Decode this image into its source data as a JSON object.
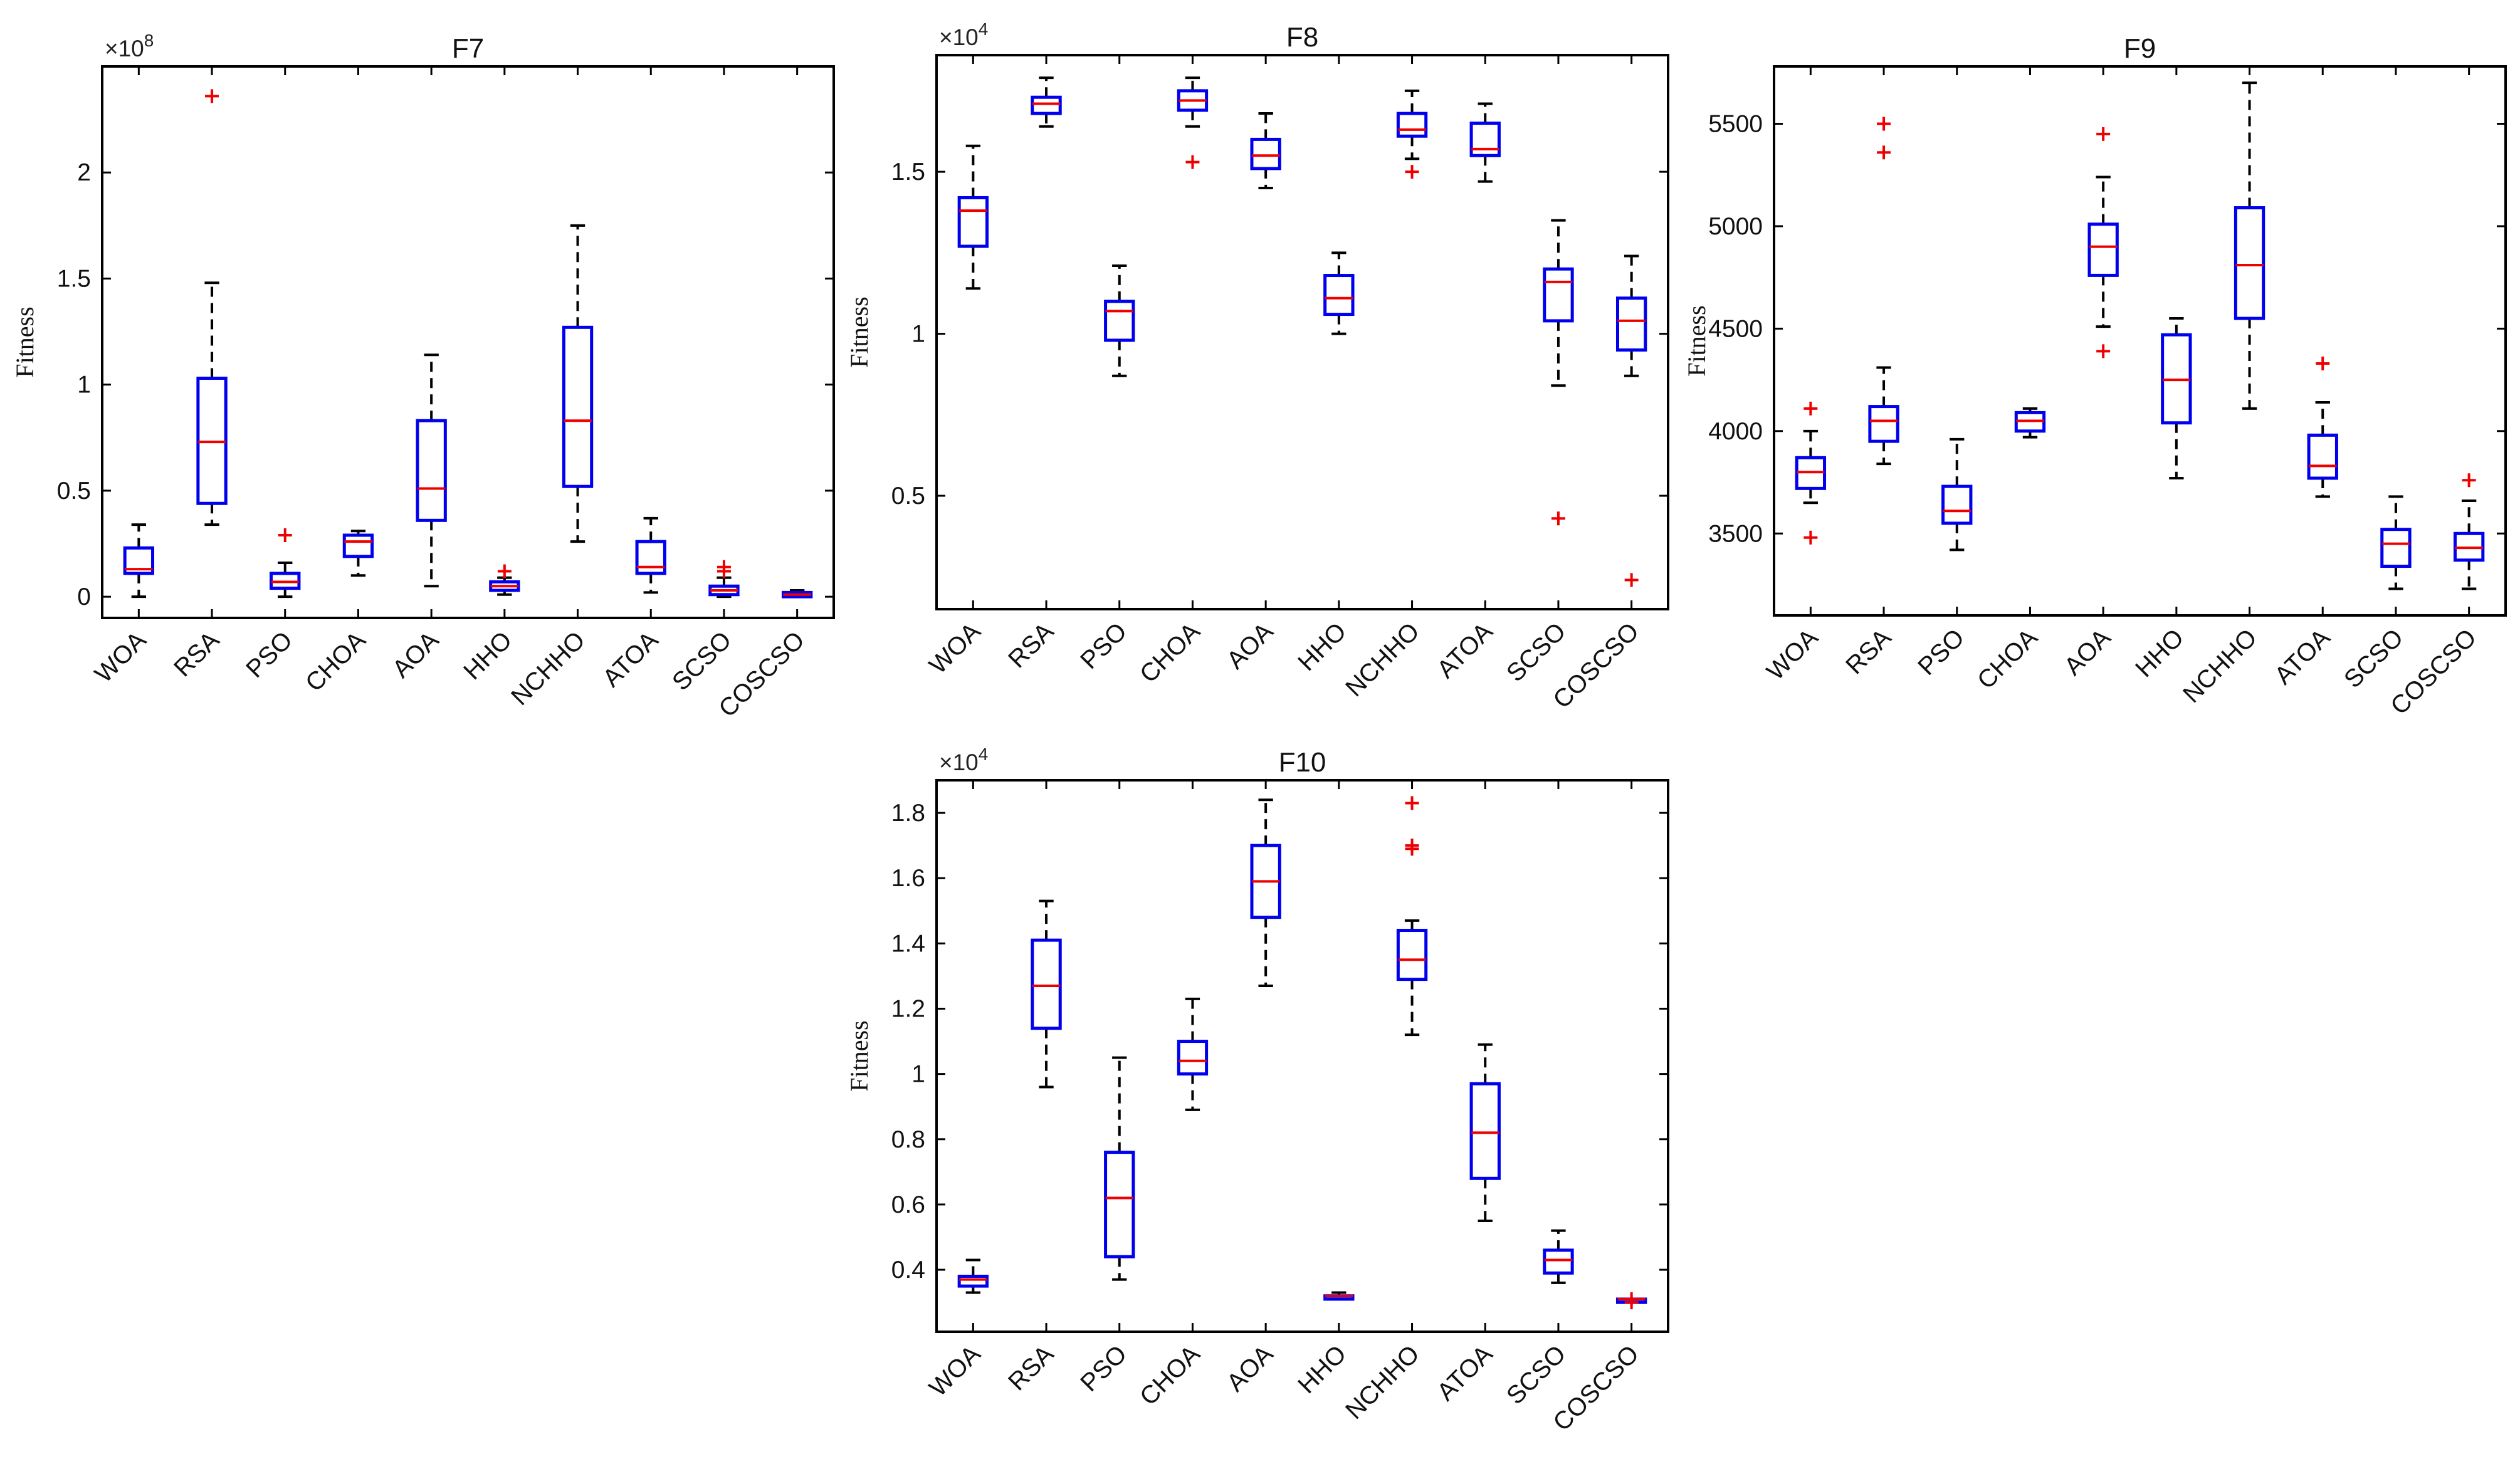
{
  "colors": {
    "box": "#0000ee",
    "median": "#ee0000",
    "outlier": "#ee0000",
    "whisker": "#000000",
    "axis": "#000000"
  },
  "chart_data": [
    {
      "type": "box",
      "title": "F7",
      "ylabel": "Fitness",
      "multiplier_base": "×10",
      "multiplier_exp": "8",
      "ylim": [
        -0.1,
        2.5
      ],
      "yticks": [
        0,
        0.5,
        1,
        1.5,
        2
      ],
      "ytick_labels": [
        "0",
        "0.5",
        "1",
        "1.5",
        "2"
      ],
      "categories": [
        "WOA",
        "RSA",
        "PSO",
        "CHOA",
        "AOA",
        "HHO",
        "NCHHO",
        "ATOA",
        "SCSO",
        "COSCSO"
      ],
      "boxes": [
        {
          "min": 0.0,
          "q1": 0.11,
          "median": 0.13,
          "q3": 0.23,
          "max": 0.34,
          "outliers": []
        },
        {
          "min": 0.34,
          "q1": 0.44,
          "median": 0.73,
          "q3": 1.03,
          "max": 1.48,
          "outliers": [
            2.36
          ]
        },
        {
          "min": 0.0,
          "q1": 0.04,
          "median": 0.07,
          "q3": 0.11,
          "max": 0.16,
          "outliers": [
            0.29
          ]
        },
        {
          "min": 0.1,
          "q1": 0.19,
          "median": 0.26,
          "q3": 0.29,
          "max": 0.31,
          "outliers": []
        },
        {
          "min": 0.05,
          "q1": 0.36,
          "median": 0.51,
          "q3": 0.83,
          "max": 1.14,
          "outliers": []
        },
        {
          "min": 0.01,
          "q1": 0.03,
          "median": 0.05,
          "q3": 0.07,
          "max": 0.09,
          "outliers": [
            0.12
          ]
        },
        {
          "min": 0.26,
          "q1": 0.52,
          "median": 0.83,
          "q3": 1.27,
          "max": 1.75,
          "outliers": []
        },
        {
          "min": 0.02,
          "q1": 0.11,
          "median": 0.14,
          "q3": 0.26,
          "max": 0.37,
          "outliers": []
        },
        {
          "min": 0.0,
          "q1": 0.01,
          "median": 0.03,
          "q3": 0.05,
          "max": 0.09,
          "outliers": [
            0.12,
            0.14
          ]
        },
        {
          "min": 0.0,
          "q1": 0.0,
          "median": 0.01,
          "q3": 0.02,
          "max": 0.03,
          "outliers": []
        }
      ]
    },
    {
      "type": "box",
      "title": "F8",
      "ylabel": "Fitness",
      "multiplier_base": "×10",
      "multiplier_exp": "4",
      "ylim": [
        0.15,
        1.86
      ],
      "yticks": [
        0.5,
        1,
        1.5
      ],
      "ytick_labels": [
        "0.5",
        "1",
        "1.5"
      ],
      "categories": [
        "WOA",
        "RSA",
        "PSO",
        "CHOA",
        "AOA",
        "HHO",
        "NCHHO",
        "ATOA",
        "SCSO",
        "COSCSO"
      ],
      "boxes": [
        {
          "min": 1.14,
          "q1": 1.27,
          "median": 1.38,
          "q3": 1.42,
          "max": 1.58,
          "outliers": []
        },
        {
          "min": 1.64,
          "q1": 1.68,
          "median": 1.71,
          "q3": 1.73,
          "max": 1.79,
          "outliers": []
        },
        {
          "min": 0.87,
          "q1": 0.98,
          "median": 1.07,
          "q3": 1.1,
          "max": 1.21,
          "outliers": []
        },
        {
          "min": 1.64,
          "q1": 1.69,
          "median": 1.72,
          "q3": 1.75,
          "max": 1.79,
          "outliers": [
            1.53
          ]
        },
        {
          "min": 1.45,
          "q1": 1.51,
          "median": 1.55,
          "q3": 1.6,
          "max": 1.68,
          "outliers": []
        },
        {
          "min": 1.0,
          "q1": 1.06,
          "median": 1.11,
          "q3": 1.18,
          "max": 1.25,
          "outliers": []
        },
        {
          "min": 1.54,
          "q1": 1.61,
          "median": 1.63,
          "q3": 1.68,
          "max": 1.75,
          "outliers": [
            1.5
          ]
        },
        {
          "min": 1.47,
          "q1": 1.55,
          "median": 1.57,
          "q3": 1.65,
          "max": 1.71,
          "outliers": []
        },
        {
          "min": 0.84,
          "q1": 1.04,
          "median": 1.16,
          "q3": 1.2,
          "max": 1.35,
          "outliers": [
            0.43
          ]
        },
        {
          "min": 0.87,
          "q1": 0.95,
          "median": 1.04,
          "q3": 1.11,
          "max": 1.24,
          "outliers": [
            0.24
          ]
        }
      ]
    },
    {
      "type": "box",
      "title": "F9",
      "ylabel": "Fitness",
      "ylim": [
        3100,
        5780
      ],
      "yticks": [
        3500,
        4000,
        4500,
        5000,
        5500
      ],
      "ytick_labels": [
        "3500",
        "4000",
        "4500",
        "5000",
        "5500"
      ],
      "categories": [
        "WOA",
        "RSA",
        "PSO",
        "CHOA",
        "AOA",
        "HHO",
        "NCHHO",
        "ATOA",
        "SCSO",
        "COSCSO"
      ],
      "boxes": [
        {
          "min": 3650,
          "q1": 3720,
          "median": 3800,
          "q3": 3870,
          "max": 4000,
          "outliers": [
            4110,
            3480
          ]
        },
        {
          "min": 3840,
          "q1": 3950,
          "median": 4050,
          "q3": 4120,
          "max": 4310,
          "outliers": [
            5500,
            5360
          ]
        },
        {
          "min": 3420,
          "q1": 3550,
          "median": 3610,
          "q3": 3730,
          "max": 3960,
          "outliers": []
        },
        {
          "min": 3970,
          "q1": 4000,
          "median": 4050,
          "q3": 4090,
          "max": 4110,
          "outliers": []
        },
        {
          "min": 4510,
          "q1": 4760,
          "median": 4900,
          "q3": 5010,
          "max": 5240,
          "outliers": [
            5450,
            4390
          ]
        },
        {
          "min": 3770,
          "q1": 4040,
          "median": 4250,
          "q3": 4470,
          "max": 4550,
          "outliers": []
        },
        {
          "min": 4110,
          "q1": 4550,
          "median": 4810,
          "q3": 5090,
          "max": 5700,
          "outliers": []
        },
        {
          "min": 3680,
          "q1": 3770,
          "median": 3830,
          "q3": 3980,
          "max": 4140,
          "outliers": [
            4330
          ]
        },
        {
          "min": 3230,
          "q1": 3340,
          "median": 3450,
          "q3": 3520,
          "max": 3680,
          "outliers": []
        },
        {
          "min": 3230,
          "q1": 3370,
          "median": 3430,
          "q3": 3500,
          "max": 3660,
          "outliers": [
            3760
          ]
        }
      ]
    },
    {
      "type": "box",
      "title": "F10",
      "ylabel": "Fitness",
      "multiplier_base": "×10",
      "multiplier_exp": "4",
      "ylim": [
        0.21,
        1.9
      ],
      "yticks": [
        0.4,
        0.6,
        0.8,
        1,
        1.2,
        1.4,
        1.6,
        1.8
      ],
      "ytick_labels": [
        "0.4",
        "0.6",
        "0.8",
        "1",
        "1.2",
        "1.4",
        "1.6",
        "1.8"
      ],
      "categories": [
        "WOA",
        "RSA",
        "PSO",
        "CHOA",
        "AOA",
        "HHO",
        "NCHHO",
        "ATOA",
        "SCSO",
        "COSCSO"
      ],
      "boxes": [
        {
          "min": 0.33,
          "q1": 0.35,
          "median": 0.37,
          "q3": 0.38,
          "max": 0.43,
          "outliers": []
        },
        {
          "min": 0.96,
          "q1": 1.14,
          "median": 1.27,
          "q3": 1.41,
          "max": 1.53,
          "outliers": []
        },
        {
          "min": 0.37,
          "q1": 0.44,
          "median": 0.62,
          "q3": 0.76,
          "max": 1.05,
          "outliers": []
        },
        {
          "min": 0.89,
          "q1": 1.0,
          "median": 1.04,
          "q3": 1.1,
          "max": 1.23,
          "outliers": []
        },
        {
          "min": 1.27,
          "q1": 1.48,
          "median": 1.59,
          "q3": 1.7,
          "max": 1.84,
          "outliers": []
        },
        {
          "min": 0.31,
          "q1": 0.31,
          "median": 0.32,
          "q3": 0.32,
          "max": 0.33,
          "outliers": []
        },
        {
          "min": 1.12,
          "q1": 1.29,
          "median": 1.35,
          "q3": 1.44,
          "max": 1.47,
          "outliers": [
            1.83,
            1.7,
            1.69
          ]
        },
        {
          "min": 0.55,
          "q1": 0.68,
          "median": 0.82,
          "q3": 0.97,
          "max": 1.09,
          "outliers": []
        },
        {
          "min": 0.36,
          "q1": 0.39,
          "median": 0.43,
          "q3": 0.46,
          "max": 0.52,
          "outliers": []
        },
        {
          "min": 0.3,
          "q1": 0.3,
          "median": 0.31,
          "q3": 0.31,
          "max": 0.31,
          "outliers": [
            0.3,
            0.31
          ]
        }
      ]
    }
  ]
}
